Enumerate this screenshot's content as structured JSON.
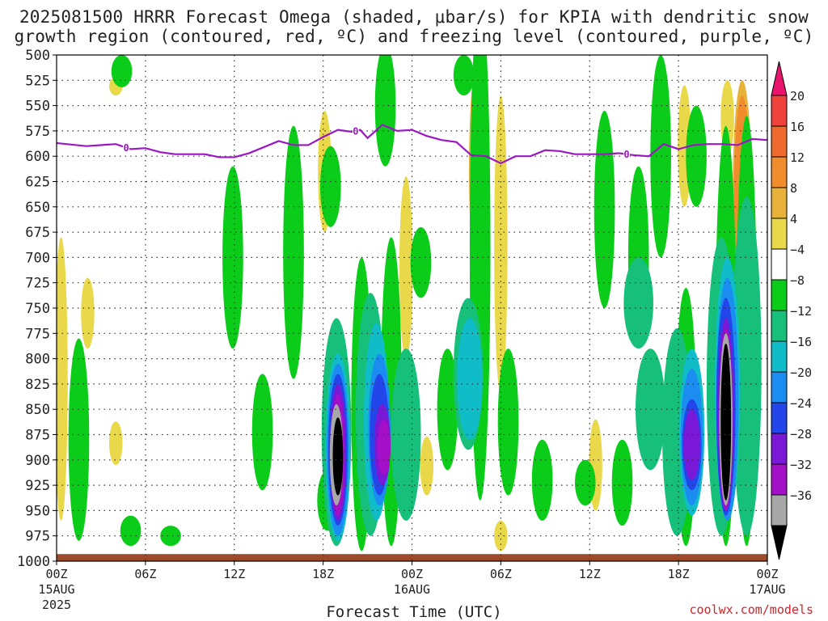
{
  "header": {
    "title_line1": "2025081500 HRRR Forecast Omega (shaded, μbar/s) for KPIA with dendritic snow",
    "title_line2": "growth region (contoured, red, ºC) and freezing level (contoured, purple, ºC)"
  },
  "footer": {
    "xlabel": "Forecast Time (UTC)",
    "credit": "coolwx.com/models"
  },
  "colors": {
    "freezing_level": "#9b17c4",
    "ground": "#9c4a2a",
    "grid": "#333333"
  },
  "chart_data": {
    "type": "heatmap",
    "title": "2025081500 HRRR Forecast Omega (shaded, μbar/s) for KPIA with dendritic snow growth region (contoured, red, ºC) and freezing level (contoured, purple, ºC)",
    "xlabel": "Forecast Time (UTC)",
    "ylabel": "",
    "x_unit": "forecast hour",
    "xlim": [
      0,
      48
    ],
    "ylim": [
      1000,
      500
    ],
    "y_ticks": [
      500,
      525,
      550,
      575,
      600,
      625,
      650,
      675,
      700,
      725,
      750,
      775,
      800,
      825,
      850,
      875,
      900,
      925,
      950,
      975,
      1000
    ],
    "x_ticks": [
      {
        "hour": 0,
        "label": "00Z",
        "sub": "15AUG",
        "sub2": "2025"
      },
      {
        "hour": 6,
        "label": "06Z",
        "sub": "",
        "sub2": ""
      },
      {
        "hour": 12,
        "label": "12Z",
        "sub": "",
        "sub2": ""
      },
      {
        "hour": 18,
        "label": "18Z",
        "sub": "",
        "sub2": ""
      },
      {
        "hour": 24,
        "label": "00Z",
        "sub": "16AUG",
        "sub2": ""
      },
      {
        "hour": 30,
        "label": "06Z",
        "sub": "",
        "sub2": ""
      },
      {
        "hour": 36,
        "label": "12Z",
        "sub": "",
        "sub2": ""
      },
      {
        "hour": 42,
        "label": "18Z",
        "sub": "",
        "sub2": ""
      },
      {
        "hour": 48,
        "label": "00Z",
        "sub": "17AUG",
        "sub2": ""
      }
    ],
    "colorbar": {
      "labels": [
        "20",
        "16",
        "12",
        "8",
        "4",
        "−4",
        "−8",
        "−12",
        "−16",
        "−20",
        "−24",
        "−28",
        "−32",
        "−36"
      ],
      "colors": [
        "#e8146e",
        "#f0423c",
        "#ee6a2d",
        "#f08c2c",
        "#e8b23a",
        "#e8d84a",
        "#ffffff",
        "#0ccc1a",
        "#17c07a",
        "#10bcc8",
        "#1b8cf0",
        "#2246ea",
        "#7a18d8",
        "#a410c8",
        "#a8a8a8",
        "#000000"
      ]
    },
    "freezing_level": {
      "label": "0",
      "x": [
        0,
        2,
        4,
        5,
        6,
        7,
        8,
        10,
        11,
        12,
        13,
        14,
        15,
        16,
        17,
        18,
        19,
        20,
        20.5,
        21,
        22,
        23,
        24,
        25,
        26,
        27,
        28,
        29,
        30,
        31,
        32,
        33,
        34,
        35,
        36,
        37,
        38,
        39,
        40,
        41,
        42,
        43,
        44,
        45,
        46,
        47,
        48
      ],
      "y": [
        587,
        590,
        588,
        593,
        592,
        596,
        598,
        598,
        601,
        601,
        597,
        591,
        585,
        589,
        589,
        581,
        574,
        576,
        574,
        582,
        569,
        575,
        574,
        580,
        584,
        586,
        599,
        600,
        607,
        600,
        600,
        594,
        595,
        598,
        598,
        598,
        597,
        599,
        600,
        588,
        593,
        589,
        588,
        588,
        589,
        583,
        584
      ]
    },
    "series": [
      {
        "name": "4",
        "color": "#e8d84a",
        "regions": [
          [
            0.3,
            680,
            960
          ],
          [
            2.1,
            720,
            790
          ],
          [
            4,
            522,
            540
          ],
          [
            4,
            862,
            905
          ],
          [
            18.1,
            555,
            675
          ],
          [
            23.6,
            620,
            800
          ],
          [
            25,
            877,
            935
          ],
          [
            30,
            540,
            835
          ],
          [
            30,
            960,
            990
          ],
          [
            36.4,
            860,
            950
          ],
          [
            42.4,
            530,
            650
          ],
          [
            45.3,
            525,
            600
          ]
        ]
      },
      {
        "name": "8",
        "color": "#e8b23a",
        "regions": [
          [
            28.5,
            500,
            725
          ],
          [
            46.3,
            525,
            760
          ]
        ]
      },
      {
        "name": "12",
        "color": "#f08c2c",
        "regions": [
          [
            28.6,
            520,
            700
          ],
          [
            46.3,
            540,
            740
          ]
        ]
      },
      {
        "name": "16",
        "color": "#ee6a2d",
        "regions": [
          [
            28.6,
            560,
            680
          ]
        ]
      },
      {
        "name": "20",
        "color": "#f0423c",
        "regions": [
          [
            46.3,
            600,
            700
          ]
        ]
      },
      {
        "name": "-4",
        "color": "#0ccc1a",
        "regions": [
          [
            1.5,
            780,
            980
          ],
          [
            4.4,
            500,
            532
          ],
          [
            5,
            955,
            985
          ],
          [
            7.7,
            965,
            985
          ],
          [
            11.9,
            610,
            790
          ],
          [
            13.9,
            815,
            930
          ],
          [
            16,
            570,
            820
          ],
          [
            18.3,
            910,
            970
          ],
          [
            18.5,
            590,
            670
          ],
          [
            20.6,
            700,
            990
          ],
          [
            22.2,
            490,
            610
          ],
          [
            22.6,
            680,
            985
          ],
          [
            24.6,
            670,
            740
          ],
          [
            26.4,
            790,
            910
          ],
          [
            27.5,
            500,
            540
          ],
          [
            28.6,
            440,
            940
          ],
          [
            30.5,
            790,
            935
          ],
          [
            32.8,
            880,
            960
          ],
          [
            35.7,
            900,
            945
          ],
          [
            37,
            555,
            750
          ],
          [
            38.2,
            880,
            965
          ],
          [
            39.3,
            610,
            790
          ],
          [
            40.8,
            500,
            700
          ],
          [
            42.5,
            730,
            985
          ],
          [
            43.2,
            550,
            650
          ],
          [
            45.2,
            570,
            985
          ],
          [
            46.6,
            560,
            985
          ]
        ]
      },
      {
        "name": "-8",
        "color": "#17c07a",
        "regions": [
          [
            18.9,
            760,
            985
          ],
          [
            21.2,
            735,
            975
          ],
          [
            23.6,
            790,
            960
          ],
          [
            27.8,
            740,
            890
          ],
          [
            39.3,
            700,
            790
          ],
          [
            40.1,
            790,
            910
          ],
          [
            41.9,
            770,
            975
          ],
          [
            44.9,
            680,
            975
          ],
          [
            46.6,
            640,
            975
          ]
        ]
      },
      {
        "name": "-12",
        "color": "#10bcc8",
        "regions": [
          [
            19,
            795,
            980
          ],
          [
            21.6,
            765,
            960
          ],
          [
            27.9,
            760,
            880
          ],
          [
            42.9,
            790,
            955
          ],
          [
            45.3,
            700,
            960
          ]
        ]
      },
      {
        "name": "-16",
        "color": "#1b8cf0",
        "regions": [
          [
            19,
            805,
            975
          ],
          [
            21.8,
            795,
            945
          ],
          [
            42.9,
            810,
            945
          ],
          [
            45.3,
            720,
            960
          ]
        ]
      },
      {
        "name": "-20",
        "color": "#2246ea",
        "regions": [
          [
            19,
            815,
            965
          ],
          [
            21.8,
            815,
            935
          ],
          [
            42.9,
            840,
            930
          ],
          [
            45.2,
            740,
            955
          ]
        ]
      },
      {
        "name": "-24",
        "color": "#7a18d8",
        "regions": [
          [
            19,
            825,
            960
          ],
          [
            22,
            845,
            925
          ],
          [
            42.9,
            850,
            920
          ],
          [
            45.2,
            760,
            950
          ]
        ]
      },
      {
        "name": "-28",
        "color": "#a410c8",
        "regions": [
          [
            19,
            835,
            955
          ],
          [
            22.1,
            860,
            915
          ],
          [
            45.2,
            770,
            950
          ]
        ]
      },
      {
        "name": "-32",
        "color": "#a8a8a8",
        "regions": [
          [
            18.9,
            845,
            945
          ],
          [
            45.2,
            775,
            945
          ]
        ]
      },
      {
        "name": "-36",
        "color": "#000000",
        "regions": [
          [
            19,
            858,
            935
          ],
          [
            45.2,
            785,
            940
          ]
        ]
      }
    ]
  }
}
